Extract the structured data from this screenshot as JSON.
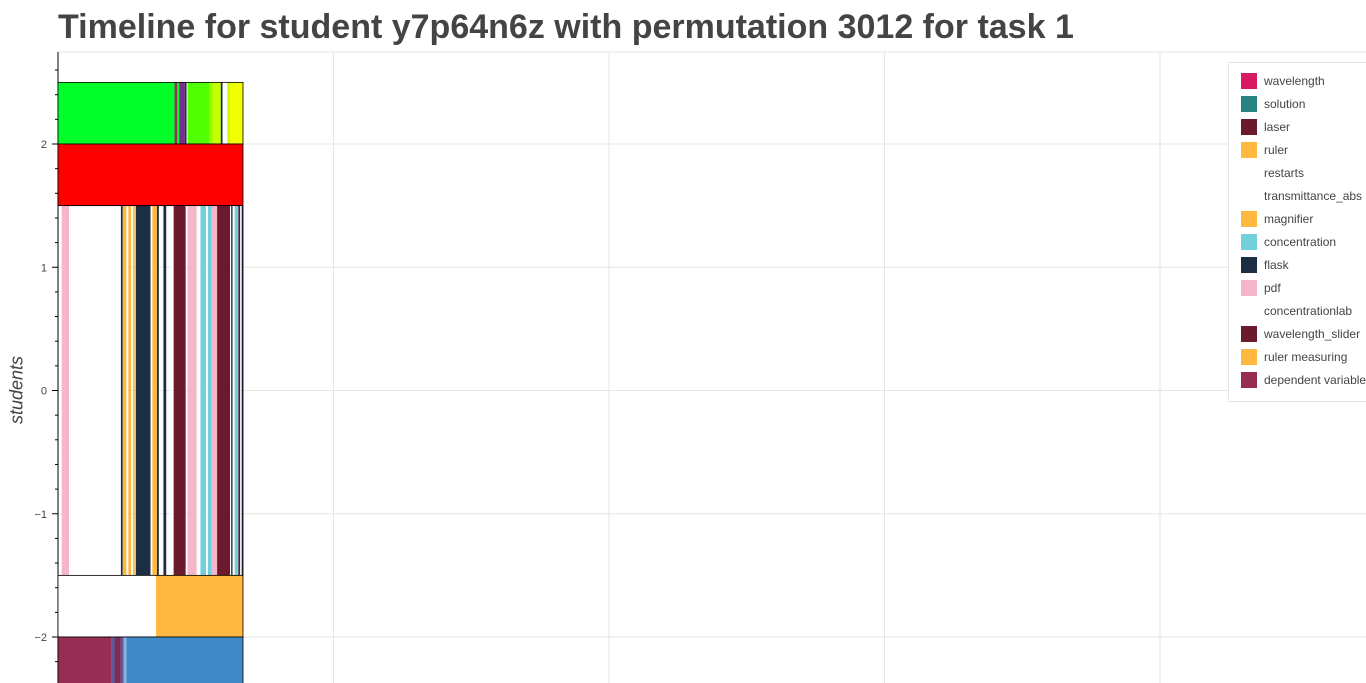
{
  "title": "Timeline for student y7p64n6z with permutation 3012 for task 1",
  "chart_data": {
    "type": "timeline",
    "title": "Timeline for student y7p64n6z with permutation 3012 for task 1",
    "ylabel": "students",
    "xlabel": "",
    "ylim": [
      -2.4,
      2.75
    ],
    "xlim": [
      0,
      1000
    ],
    "yticks": [
      2,
      1,
      0,
      -1,
      -2
    ],
    "ytick_labels": [
      "2",
      "1",
      "0",
      "−1",
      "−2"
    ],
    "grid": true,
    "legend_position": "top-right",
    "legend": [
      {
        "name": "wavelength",
        "color": "#d81b60"
      },
      {
        "name": "solution",
        "color": "#26837f"
      },
      {
        "name": "laser",
        "color": "#6b1a2e"
      },
      {
        "name": "ruler",
        "color": "#ffb940"
      },
      {
        "name": "restarts",
        "color": "#ffffff"
      },
      {
        "name": "transmittance_abs",
        "color": "#ffffff"
      },
      {
        "name": "magnifier",
        "color": "#ffb940"
      },
      {
        "name": "concentration",
        "color": "#72d0dc"
      },
      {
        "name": "flask",
        "color": "#1b2e42"
      },
      {
        "name": "pdf",
        "color": "#f4b6c8"
      },
      {
        "name": "concentrationlab",
        "color": "#ffffff"
      },
      {
        "name": "wavelength_slider",
        "color": "#6b1a2e"
      },
      {
        "name": "ruler measuring",
        "color": "#ffb940"
      },
      {
        "name": "dependent variable",
        "color": "#962d53"
      }
    ],
    "rows": [
      {
        "y0": 2.0,
        "y1": 2.5,
        "segments": [
          {
            "start": 0,
            "end": 63,
            "color": "#00ff2a"
          },
          {
            "start": 63,
            "end": 64.5,
            "color": "#962d53"
          },
          {
            "start": 64.5,
            "end": 65.5,
            "color": "#00ff2a"
          },
          {
            "start": 65.5,
            "end": 68.5,
            "color": "#7b2d8b"
          },
          {
            "start": 68.5,
            "end": 69.5,
            "color": "#1b2e42"
          },
          {
            "start": 69.5,
            "end": 70,
            "color": "#ffffff"
          },
          {
            "start": 70,
            "end": 82,
            "color": "#50ff00"
          },
          {
            "start": 82,
            "end": 84,
            "color": "#a3ff00"
          },
          {
            "start": 84,
            "end": 88,
            "color": "#c6ff00"
          },
          {
            "start": 88,
            "end": 89,
            "color": "#1b2e42"
          },
          {
            "start": 89,
            "end": 91.5,
            "color": "#ffffff"
          },
          {
            "start": 91.5,
            "end": 93,
            "color": "#c6ff00"
          },
          {
            "start": 93,
            "end": 100,
            "color": "#f2ff00"
          }
        ]
      },
      {
        "y0": 1.5,
        "y1": 2.0,
        "segments": [
          {
            "start": 0,
            "end": 100,
            "color": "#ff0000"
          }
        ]
      },
      {
        "y0": -1.5,
        "y1": 1.5,
        "segments": [
          {
            "start": 2,
            "end": 6,
            "color": "#f4b6c8"
          },
          {
            "start": 6,
            "end": 34,
            "color": "#ffffff"
          },
          {
            "start": 34,
            "end": 35,
            "color": "#1b2e42"
          },
          {
            "start": 35,
            "end": 37,
            "color": "#ffb940"
          },
          {
            "start": 37,
            "end": 38,
            "color": "#ffffff"
          },
          {
            "start": 38,
            "end": 39.5,
            "color": "#ffb940"
          },
          {
            "start": 40.5,
            "end": 41.5,
            "color": "#ffb940"
          },
          {
            "start": 42,
            "end": 50,
            "color": "#1b2e42"
          },
          {
            "start": 50,
            "end": 51,
            "color": "#ffffff"
          },
          {
            "start": 51,
            "end": 53.5,
            "color": "#ffb940"
          },
          {
            "start": 53.5,
            "end": 54.5,
            "color": "#1b2e42"
          },
          {
            "start": 57,
            "end": 58.5,
            "color": "#1b2e42"
          },
          {
            "start": 61,
            "end": 62.5,
            "color": "#ffffff"
          },
          {
            "start": 62.5,
            "end": 69,
            "color": "#6b1a2e"
          },
          {
            "start": 70,
            "end": 75,
            "color": "#f4b6c8"
          },
          {
            "start": 75,
            "end": 77,
            "color": "#ffffff"
          },
          {
            "start": 77,
            "end": 80,
            "color": "#72d0dc"
          },
          {
            "start": 80,
            "end": 81,
            "color": "#ffffff"
          },
          {
            "start": 81,
            "end": 83,
            "color": "#72d0dc"
          },
          {
            "start": 83,
            "end": 86,
            "color": "#f4b6c8"
          },
          {
            "start": 86,
            "end": 93,
            "color": "#6b1a2e"
          },
          {
            "start": 93,
            "end": 93.6,
            "color": "#ffffff"
          },
          {
            "start": 93.6,
            "end": 94.4,
            "color": "#1b2e42"
          },
          {
            "start": 94.4,
            "end": 95.5,
            "color": "#ffffff"
          },
          {
            "start": 95.5,
            "end": 97.5,
            "color": "#72d0dc"
          },
          {
            "start": 97.5,
            "end": 98.5,
            "color": "#6b1a2e"
          },
          {
            "start": 98.5,
            "end": 99.3,
            "color": "#ffffff"
          },
          {
            "start": 99.3,
            "end": 100,
            "color": "#1b2e42"
          }
        ]
      },
      {
        "y0": -2.0,
        "y1": -1.5,
        "segments": [
          {
            "start": 0,
            "end": 53,
            "color": "#ffffff"
          },
          {
            "start": 53,
            "end": 100,
            "color": "#ffb940"
          }
        ]
      },
      {
        "y0": -2.4,
        "y1": -2.0,
        "segments": [
          {
            "start": 0,
            "end": 29,
            "color": "#962d53"
          },
          {
            "start": 29,
            "end": 30.5,
            "color": "#5a5aa0"
          },
          {
            "start": 30.5,
            "end": 34,
            "color": "#7a2d5a"
          },
          {
            "start": 34,
            "end": 35.5,
            "color": "#5a5aa0"
          },
          {
            "start": 35.5,
            "end": 37,
            "color": "#8ab0d8"
          },
          {
            "start": 37,
            "end": 100,
            "color": "#4289c8"
          }
        ]
      }
    ],
    "x_gridlines": [
      150,
      300,
      450,
      600
    ]
  }
}
